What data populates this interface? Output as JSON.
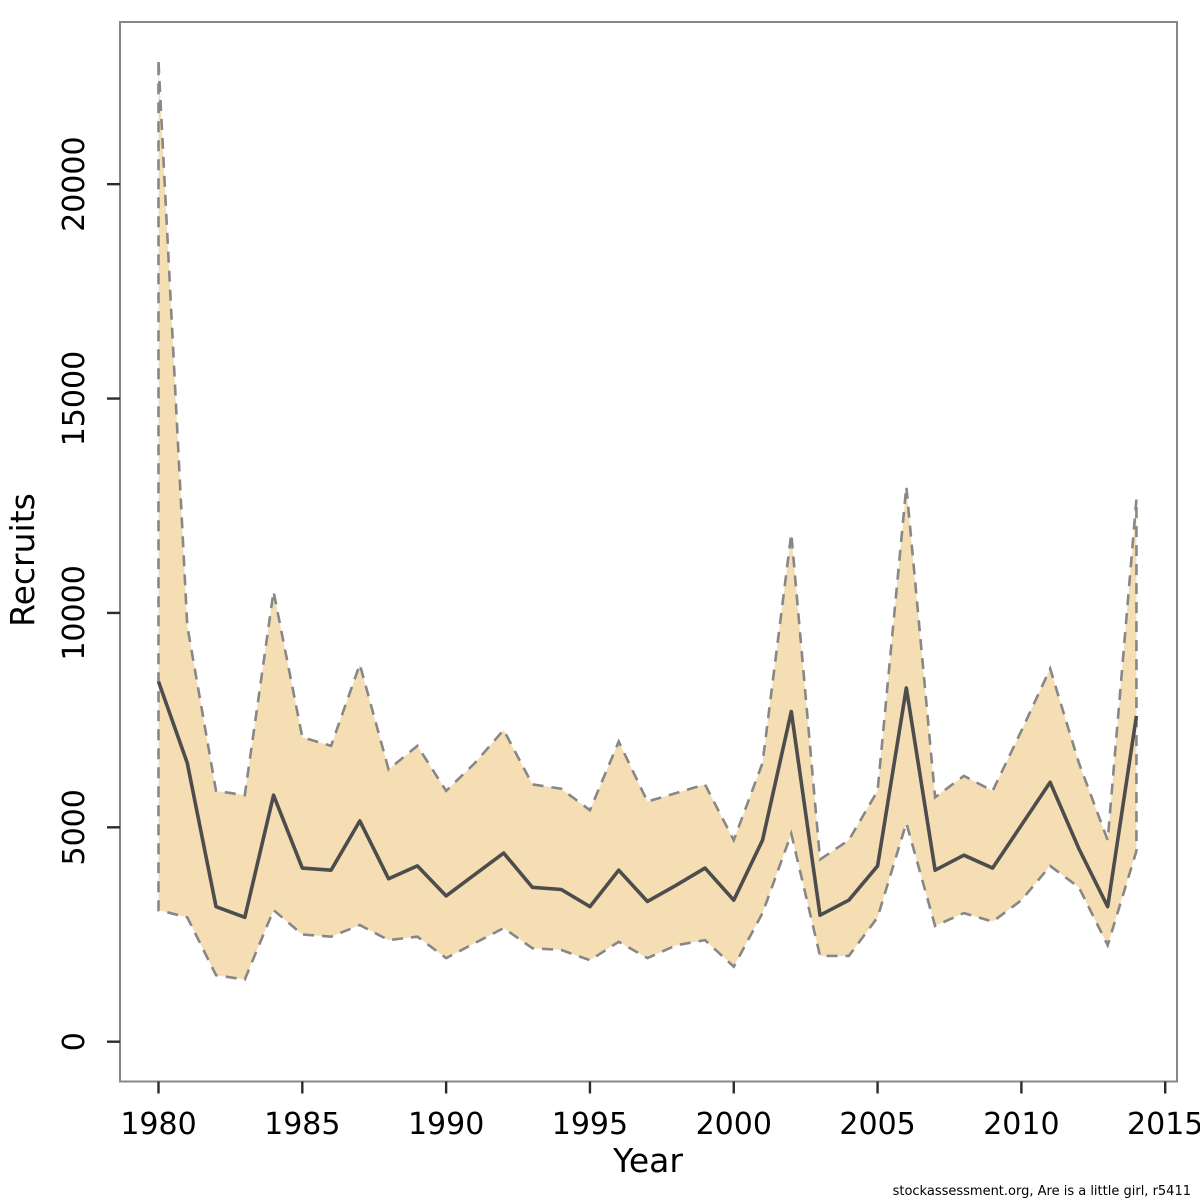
{
  "footer": {
    "text": "stockassessment.org, Are is a little girl, r5411"
  },
  "chart_data": {
    "type": "area",
    "title": "",
    "xlabel": "Year",
    "ylabel": "Recruits",
    "grid": false,
    "legend": "none",
    "xlim": [
      1978.7,
      2015.4
    ],
    "ylim": [
      -930,
      23780
    ],
    "x_ticks": [
      1980,
      1985,
      1990,
      1995,
      2000,
      2005,
      2010,
      2015
    ],
    "y_ticks": [
      0,
      5000,
      10000,
      15000,
      20000
    ],
    "x": [
      1980,
      1981,
      1982,
      1983,
      1984,
      1985,
      1986,
      1987,
      1988,
      1989,
      1990,
      1991,
      1992,
      1993,
      1994,
      1995,
      1996,
      1997,
      1998,
      1999,
      2000,
      2001,
      2002,
      2003,
      2004,
      2005,
      2006,
      2007,
      2008,
      2009,
      2010,
      2011,
      2012,
      2013,
      2014
    ],
    "series": [
      {
        "name": "median",
        "style": "solid",
        "values": [
          8400,
          6500,
          3150,
          2900,
          5750,
          4050,
          4000,
          5150,
          3800,
          4100,
          3400,
          3900,
          4400,
          3600,
          3550,
          3150,
          4000,
          3270,
          3650,
          4050,
          3300,
          4700,
          7700,
          2950,
          3300,
          4100,
          8250,
          4000,
          4350,
          4050,
          5050,
          6050,
          4500,
          3150,
          7600
        ]
      },
      {
        "name": "lower-ci",
        "style": "dashed-band-edge",
        "values": [
          3070,
          2900,
          1550,
          1450,
          3070,
          2500,
          2450,
          2720,
          2370,
          2450,
          1950,
          2300,
          2650,
          2180,
          2140,
          1900,
          2330,
          1950,
          2250,
          2370,
          1750,
          3000,
          4850,
          2000,
          2000,
          2900,
          5100,
          2700,
          3000,
          2800,
          3300,
          4100,
          3600,
          2250,
          4450
        ]
      },
      {
        "name": "upper-ci",
        "style": "dashed-band-edge",
        "values": [
          22850,
          9700,
          5850,
          5750,
          10500,
          7100,
          6900,
          8800,
          6350,
          6900,
          5850,
          6500,
          7270,
          6000,
          5900,
          5400,
          7000,
          5600,
          5800,
          6000,
          4700,
          6500,
          11850,
          4250,
          4700,
          5850,
          12950,
          5700,
          6200,
          5850,
          7250,
          8700,
          6500,
          4700,
          12650
        ]
      }
    ],
    "colors": {
      "band_fill": "#f5deb3",
      "band_border": "#878787",
      "median_line": "#4d4d4d",
      "box_border": "#878787",
      "tick": "#2b2b2b"
    }
  }
}
